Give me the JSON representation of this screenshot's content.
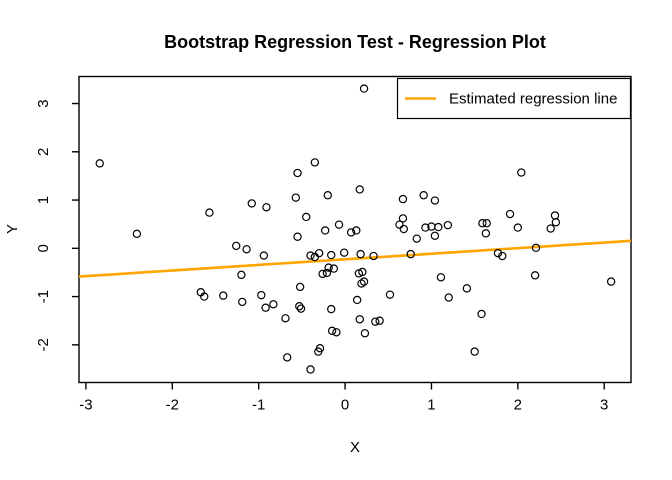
{
  "figure": {
    "background": "#FFFFFF"
  },
  "chart_data": {
    "type": "scatter",
    "title": "Bootstrap Regression Test - Regression Plot",
    "xlabel": "X",
    "ylabel": "Y",
    "xlim": [
      -3.08,
      3.31
    ],
    "ylim": [
      -2.78,
      3.56
    ],
    "xticks": [
      -3,
      -2,
      -1,
      0,
      1,
      2,
      3
    ],
    "yticks": [
      -2,
      -1,
      0,
      1,
      2,
      3
    ],
    "grid": false,
    "marker": "open-circle",
    "point_color": "#000000",
    "line_color": "#FFA500",
    "box_color": "#000000",
    "legend": {
      "position": "topright",
      "entries": [
        {
          "label": "Estimated regression line",
          "color": "#FFA500",
          "type": "line"
        }
      ]
    },
    "regression_line": {
      "x1": -3.08,
      "y1": -0.585,
      "x2": 3.31,
      "y2": 0.155,
      "slope": 0.116,
      "intercept": -0.228
    },
    "points": [
      [
        -2.84,
        1.76
      ],
      [
        -2.41,
        0.3
      ],
      [
        -1.57,
        0.74
      ],
      [
        -1.08,
        0.93
      ],
      [
        -0.91,
        0.85
      ],
      [
        0.22,
        3.31
      ],
      [
        -0.35,
        1.78
      ],
      [
        -0.55,
        1.56
      ],
      [
        -0.57,
        1.05
      ],
      [
        -0.2,
        1.1
      ],
      [
        0.17,
        1.22
      ],
      [
        -0.45,
        0.65
      ],
      [
        -0.07,
        0.49
      ],
      [
        0.67,
        1.02
      ],
      [
        0.91,
        1.1
      ],
      [
        1.04,
        0.99
      ],
      [
        0.67,
        0.62
      ],
      [
        0.63,
        0.49
      ],
      [
        0.68,
        0.4
      ],
      [
        0.93,
        0.43
      ],
      [
        1.0,
        0.45
      ],
      [
        1.08,
        0.44
      ],
      [
        1.19,
        0.48
      ],
      [
        2.04,
        1.57
      ],
      [
        1.91,
        0.71
      ],
      [
        2.0,
        0.43
      ],
      [
        1.59,
        0.52
      ],
      [
        1.64,
        0.52
      ],
      [
        1.63,
        0.31
      ],
      [
        2.43,
        0.68
      ],
      [
        2.44,
        0.54
      ],
      [
        2.38,
        0.41
      ],
      [
        -1.26,
        0.05
      ],
      [
        -1.14,
        -0.02
      ],
      [
        -0.94,
        -0.15
      ],
      [
        -1.2,
        -0.55
      ],
      [
        -1.67,
        -0.91
      ],
      [
        -1.63,
        -1.0
      ],
      [
        -1.41,
        -0.98
      ],
      [
        -1.19,
        -1.11
      ],
      [
        -0.97,
        -0.97
      ],
      [
        -0.92,
        -1.23
      ],
      [
        -0.23,
        0.37
      ],
      [
        0.07,
        0.33
      ],
      [
        0.13,
        0.37
      ],
      [
        1.04,
        0.26
      ],
      [
        -0.55,
        0.24
      ],
      [
        0.83,
        0.2
      ],
      [
        -0.4,
        -0.15
      ],
      [
        -0.35,
        -0.18
      ],
      [
        -0.3,
        -0.1
      ],
      [
        -0.16,
        -0.14
      ],
      [
        -0.01,
        -0.09
      ],
      [
        0.18,
        -0.12
      ],
      [
        0.33,
        -0.16
      ],
      [
        0.76,
        -0.12
      ],
      [
        -0.19,
        -0.4
      ],
      [
        -0.13,
        -0.42
      ],
      [
        -0.26,
        -0.53
      ],
      [
        -0.21,
        -0.51
      ],
      [
        0.16,
        -0.52
      ],
      [
        0.2,
        -0.49
      ],
      [
        0.19,
        -0.73
      ],
      [
        0.22,
        -0.69
      ],
      [
        -0.52,
        -0.8
      ],
      [
        0.52,
        -0.96
      ],
      [
        1.11,
        -0.6
      ],
      [
        -0.83,
        -1.16
      ],
      [
        -0.53,
        -1.2
      ],
      [
        -0.51,
        -1.25
      ],
      [
        -0.69,
        -1.45
      ],
      [
        -0.16,
        -1.26
      ],
      [
        0.14,
        -1.07
      ],
      [
        0.17,
        -1.47
      ],
      [
        0.35,
        -1.52
      ],
      [
        0.4,
        -1.5
      ],
      [
        -0.15,
        -1.71
      ],
      [
        -0.1,
        -1.74
      ],
      [
        0.23,
        -1.76
      ],
      [
        -0.31,
        -2.14
      ],
      [
        -0.29,
        -2.07
      ],
      [
        -0.67,
        -2.26
      ],
      [
        -0.4,
        -2.51
      ],
      [
        1.77,
        -0.1
      ],
      [
        1.82,
        -0.16
      ],
      [
        2.21,
        0.01
      ],
      [
        2.2,
        -0.56
      ],
      [
        3.08,
        -0.69
      ],
      [
        1.41,
        -0.83
      ],
      [
        1.2,
        -1.02
      ],
      [
        1.58,
        -1.36
      ],
      [
        1.5,
        -2.14
      ]
    ]
  }
}
